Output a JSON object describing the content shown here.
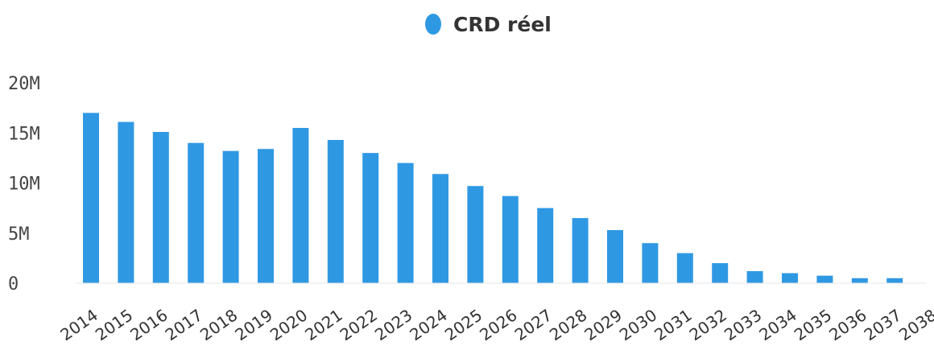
{
  "chart_data": {
    "type": "bar",
    "legend": {
      "position": "top-center",
      "entries": [
        "CRD réel"
      ]
    },
    "series": [
      {
        "name": "CRD réel",
        "color": "#2f98e3",
        "values": [
          17.0,
          16.1,
          15.1,
          14.0,
          13.2,
          13.4,
          15.5,
          14.3,
          13.0,
          12.0,
          10.9,
          9.7,
          8.7,
          7.5,
          6.5,
          5.3,
          4.0,
          3.0,
          2.0,
          1.2,
          1.0,
          0.75,
          0.5,
          0.5,
          0.0
        ]
      }
    ],
    "categories": [
      "2014",
      "2015",
      "2016",
      "2017",
      "2018",
      "2019",
      "2020",
      "2021",
      "2022",
      "2023",
      "2024",
      "2025",
      "2026",
      "2027",
      "2028",
      "2029",
      "2030",
      "2031",
      "2032",
      "2033",
      "2034",
      "2035",
      "2036",
      "2037",
      "2038"
    ],
    "yticks": [
      0,
      5,
      10,
      15,
      20
    ],
    "ytick_labels": [
      "0",
      "5M",
      "10M",
      "15M",
      "20M"
    ],
    "ylim": [
      0,
      20
    ],
    "title": "",
    "xlabel": "",
    "ylabel": "",
    "grid": false
  }
}
